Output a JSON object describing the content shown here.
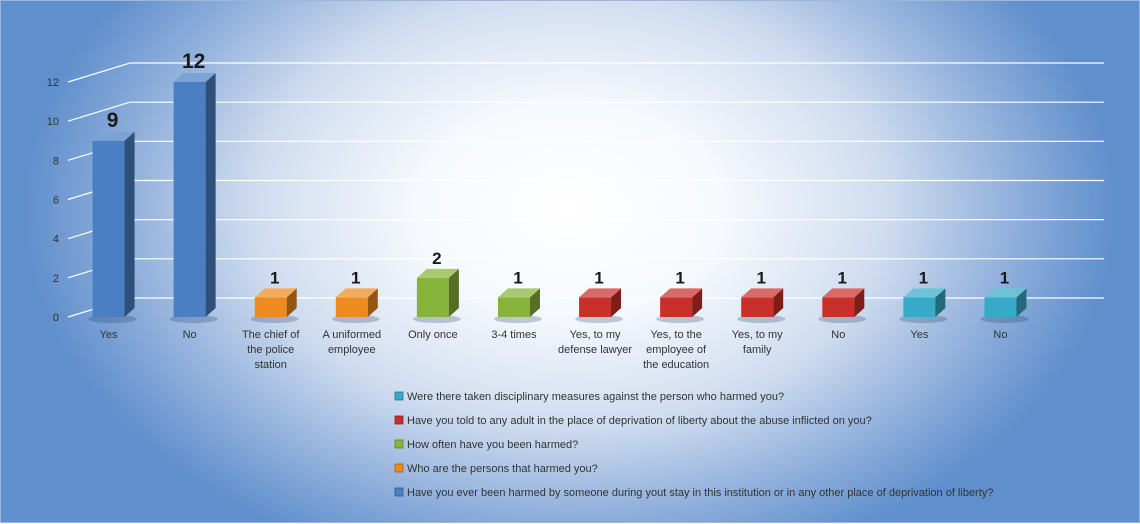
{
  "chart_data": {
    "type": "bar",
    "style": "3d-clustered-column",
    "y_ticks": [
      0,
      2,
      4,
      6,
      8,
      10,
      12
    ],
    "ylim": [
      0,
      12
    ],
    "grid": true,
    "legend_position": "bottom",
    "legend_order": [
      4,
      3,
      2,
      1,
      0
    ],
    "series": [
      {
        "name": "Have you ever been harmed by someone during yout stay in this institution or in any other place of deprivation of liberty?",
        "color": "#4a7fc3",
        "points": [
          {
            "label": "Yes",
            "value": 9
          },
          {
            "label": "No",
            "value": 12
          }
        ]
      },
      {
        "name": "Who are the persons that harmed you?",
        "color": "#ee8b1e",
        "points": [
          {
            "label": "The chief of the police station",
            "value": 1
          },
          {
            "label": "A uniformed employee",
            "value": 1
          }
        ]
      },
      {
        "name": "How often have you been harmed?",
        "color": "#86b43a",
        "points": [
          {
            "label": "Only once",
            "value": 2
          },
          {
            "label": "3-4 times",
            "value": 1
          }
        ]
      },
      {
        "name": "Have you told to any adult in the place of deprivation of liberty about the abuse inflicted on you?",
        "color": "#c9302c",
        "points": [
          {
            "label": "Yes, to my defense lawyer",
            "value": 1
          },
          {
            "label": "Yes, to the employee of the education",
            "value": 1
          },
          {
            "label": "Yes, to my family",
            "value": 1
          },
          {
            "label": "No",
            "value": 1
          }
        ]
      },
      {
        "name": "Were there taken disciplinary measures against the person who harmed you?",
        "color": "#36aac6",
        "points": [
          {
            "label": "Yes",
            "value": 1
          },
          {
            "label": "No",
            "value": 1
          }
        ]
      }
    ]
  }
}
